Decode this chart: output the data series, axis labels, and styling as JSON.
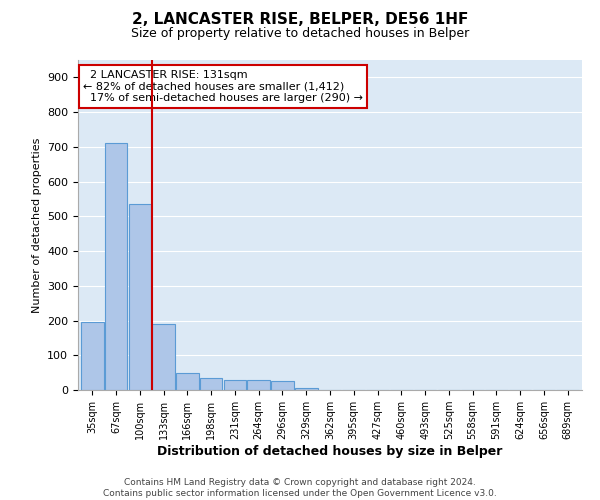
{
  "title": "2, LANCASTER RISE, BELPER, DE56 1HF",
  "subtitle": "Size of property relative to detached houses in Belper",
  "xlabel": "Distribution of detached houses by size in Belper",
  "ylabel": "Number of detached properties",
  "bar_labels": [
    "35sqm",
    "67sqm",
    "100sqm",
    "133sqm",
    "166sqm",
    "198sqm",
    "231sqm",
    "264sqm",
    "296sqm",
    "329sqm",
    "362sqm",
    "395sqm",
    "427sqm",
    "460sqm",
    "493sqm",
    "525sqm",
    "558sqm",
    "591sqm",
    "624sqm",
    "656sqm",
    "689sqm"
  ],
  "bar_values": [
    195,
    710,
    535,
    190,
    50,
    35,
    30,
    30,
    25,
    7,
    0,
    0,
    0,
    0,
    0,
    0,
    0,
    0,
    0,
    0,
    0
  ],
  "bar_color": "#aec6e8",
  "bar_edge_color": "#5b9bd5",
  "bg_color": "#dce9f5",
  "grid_color": "#ffffff",
  "vline_x": 2.5,
  "vline_color": "#cc0000",
  "annotation_text": "  2 LANCASTER RISE: 131sqm\n← 82% of detached houses are smaller (1,412)\n  17% of semi-detached houses are larger (290) →",
  "annotation_box_color": "#ffffff",
  "annotation_box_edge": "#cc0000",
  "ylim": [
    0,
    950
  ],
  "yticks": [
    0,
    100,
    200,
    300,
    400,
    500,
    600,
    700,
    800,
    900
  ],
  "footer_line1": "Contains HM Land Registry data © Crown copyright and database right 2024.",
  "footer_line2": "Contains public sector information licensed under the Open Government Licence v3.0."
}
